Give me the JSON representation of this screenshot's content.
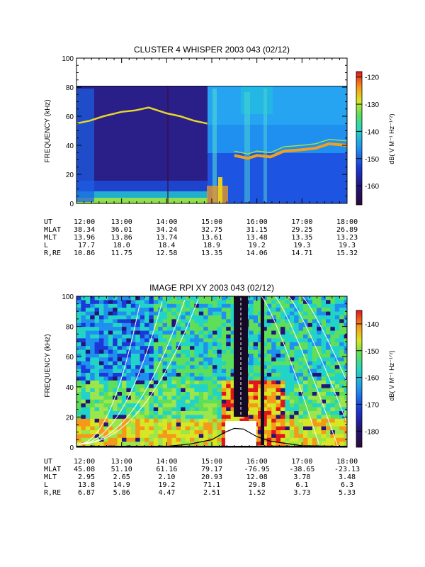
{
  "colors": {
    "axis": "#000000",
    "background": "#ffffff",
    "curve": "#ffffff",
    "gap": "#ffffff"
  },
  "chart_data": [
    {
      "type": "heatmap",
      "title": "CLUSTER 4 WHISPER 2003 043 (02/12)",
      "ylabel": "FREQUENCY (kHz)",
      "y_ticks": [
        "0",
        "20",
        "40",
        "60",
        "80",
        "100"
      ],
      "ylim": [
        0,
        100
      ],
      "data_top_khz": 80,
      "x_range_ut_hours": [
        12,
        18
      ],
      "colorbar": {
        "label": "dB( V M⁻¹ Hz⁻¹ᐟ²)",
        "ticks": [
          "-120",
          "-130",
          "-140",
          "-150",
          "-160"
        ],
        "range": [
          -167,
          -118
        ]
      },
      "features": {
        "upper_band_khz": [
          [
            12.0,
            55
          ],
          [
            12.3,
            57
          ],
          [
            12.6,
            60
          ],
          [
            13.0,
            63
          ],
          [
            13.3,
            64
          ],
          [
            13.6,
            66
          ],
          [
            14.0,
            62
          ],
          [
            14.3,
            60
          ],
          [
            14.6,
            57
          ],
          [
            14.9,
            55
          ]
        ],
        "lower_band_khz": [
          [
            15.5,
            33
          ],
          [
            15.8,
            31
          ],
          [
            16.0,
            33
          ],
          [
            16.3,
            32
          ],
          [
            16.6,
            36
          ],
          [
            17.0,
            37
          ],
          [
            17.3,
            38
          ],
          [
            17.6,
            41
          ],
          [
            18.0,
            40
          ]
        ]
      },
      "orbit": {
        "labels": [
          "UT",
          "MLAT",
          "MLT",
          "L",
          "R,RE"
        ],
        "columns": [
          {
            "ut": "12:00",
            "mlat": "38.34",
            "mlt": "13.96",
            "l": "17.7",
            "r": "10.86"
          },
          {
            "ut": "13:00",
            "mlat": "36.01",
            "mlt": "13.86",
            "l": "18.0",
            "r": "11.75"
          },
          {
            "ut": "14:00",
            "mlat": "34.24",
            "mlt": "13.74",
            "l": "18.4",
            "r": "12.58"
          },
          {
            "ut": "15:00",
            "mlat": "32.75",
            "mlt": "13.61",
            "l": "18.9",
            "r": "13.35"
          },
          {
            "ut": "16:00",
            "mlat": "31.15",
            "mlt": "13.48",
            "l": "19.2",
            "r": "14.06"
          },
          {
            "ut": "17:00",
            "mlat": "29.25",
            "mlt": "13.35",
            "l": "19.3",
            "r": "14.71"
          },
          {
            "ut": "18:00",
            "mlat": "26.89",
            "mlt": "13.23",
            "l": "19.3",
            "r": "15.32"
          }
        ]
      }
    },
    {
      "type": "heatmap",
      "title": "IMAGE RPI XY 2003 043 (02/12)",
      "ylabel": "FREQUENCY (kHz)",
      "y_ticks": [
        "0",
        "20",
        "40",
        "60",
        "80",
        "100"
      ],
      "ylim": [
        0,
        100
      ],
      "x_range_ut_hours": [
        12,
        18
      ],
      "colorbar": {
        "label": "dB( V M⁻¹ Hz⁻¹ᐟ²)",
        "ticks": [
          "-140",
          "-150",
          "-160",
          "-170",
          "-180"
        ],
        "range": [
          -186,
          -135
        ]
      },
      "features": {
        "dark_gap_ut": [
          [
            15.45,
            15.75
          ],
          [
            16.1,
            16.18
          ]
        ],
        "white_gap_ut": [
          15.2,
          15.9
        ],
        "white_gap_top_khz": 17,
        "black_profile": [
          [
            12.0,
            0.5
          ],
          [
            13.0,
            0.5
          ],
          [
            14.0,
            0.6
          ],
          [
            14.5,
            2
          ],
          [
            15.0,
            5
          ],
          [
            15.3,
            10
          ],
          [
            15.5,
            12.5
          ],
          [
            15.7,
            12
          ],
          [
            16.0,
            7
          ],
          [
            16.3,
            4
          ],
          [
            17.0,
            1
          ],
          [
            18.0,
            0.5
          ]
        ]
      },
      "orbit": {
        "labels": [
          "UT",
          "MLAT",
          "MLT",
          "L",
          "R,RE"
        ],
        "columns": [
          {
            "ut": "12:00",
            "mlat": "45.08",
            "mlt": "2.95",
            "l": "13.8",
            "r": "6.87"
          },
          {
            "ut": "13:00",
            "mlat": "51.10",
            "mlt": "2.65",
            "l": "14.9",
            "r": "5.86"
          },
          {
            "ut": "14:00",
            "mlat": "61.16",
            "mlt": "2.10",
            "l": "19.2",
            "r": "4.47"
          },
          {
            "ut": "15:00",
            "mlat": "79.17",
            "mlt": "20.93",
            "l": "71.1",
            "r": "2.51"
          },
          {
            "ut": "16:00",
            "mlat": "-76.95",
            "mlt": "12.08",
            "l": "29.8",
            "r": "1.52"
          },
          {
            "ut": "17:00",
            "mlat": "-38.65",
            "mlt": "3.78",
            "l": "6.1",
            "r": "3.73"
          },
          {
            "ut": "18:00",
            "mlat": "-23.13",
            "mlt": "3.48",
            "l": "6.3",
            "r": "5.33"
          }
        ]
      }
    }
  ]
}
